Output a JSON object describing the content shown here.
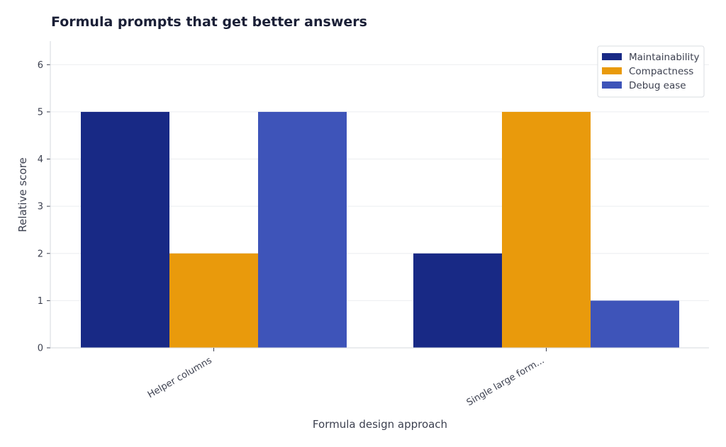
{
  "chart_data": {
    "type": "bar",
    "title": "Formula prompts that get better answers",
    "xlabel": "Formula design approach",
    "ylabel": "Relative score",
    "categories": [
      "Helper columns",
      "Single large form..."
    ],
    "series": [
      {
        "name": "Maintainability",
        "color": "#182985",
        "values": [
          5,
          2
        ]
      },
      {
        "name": "Compactness",
        "color": "#e99a0c",
        "values": [
          2,
          5
        ]
      },
      {
        "name": "Debug ease",
        "color": "#3e54b9",
        "values": [
          5,
          1
        ]
      }
    ],
    "ylim": [
      0,
      6.5
    ],
    "yticks": [
      0,
      1,
      2,
      3,
      4,
      5,
      6
    ],
    "grid": true,
    "legend_position": "top-right"
  }
}
